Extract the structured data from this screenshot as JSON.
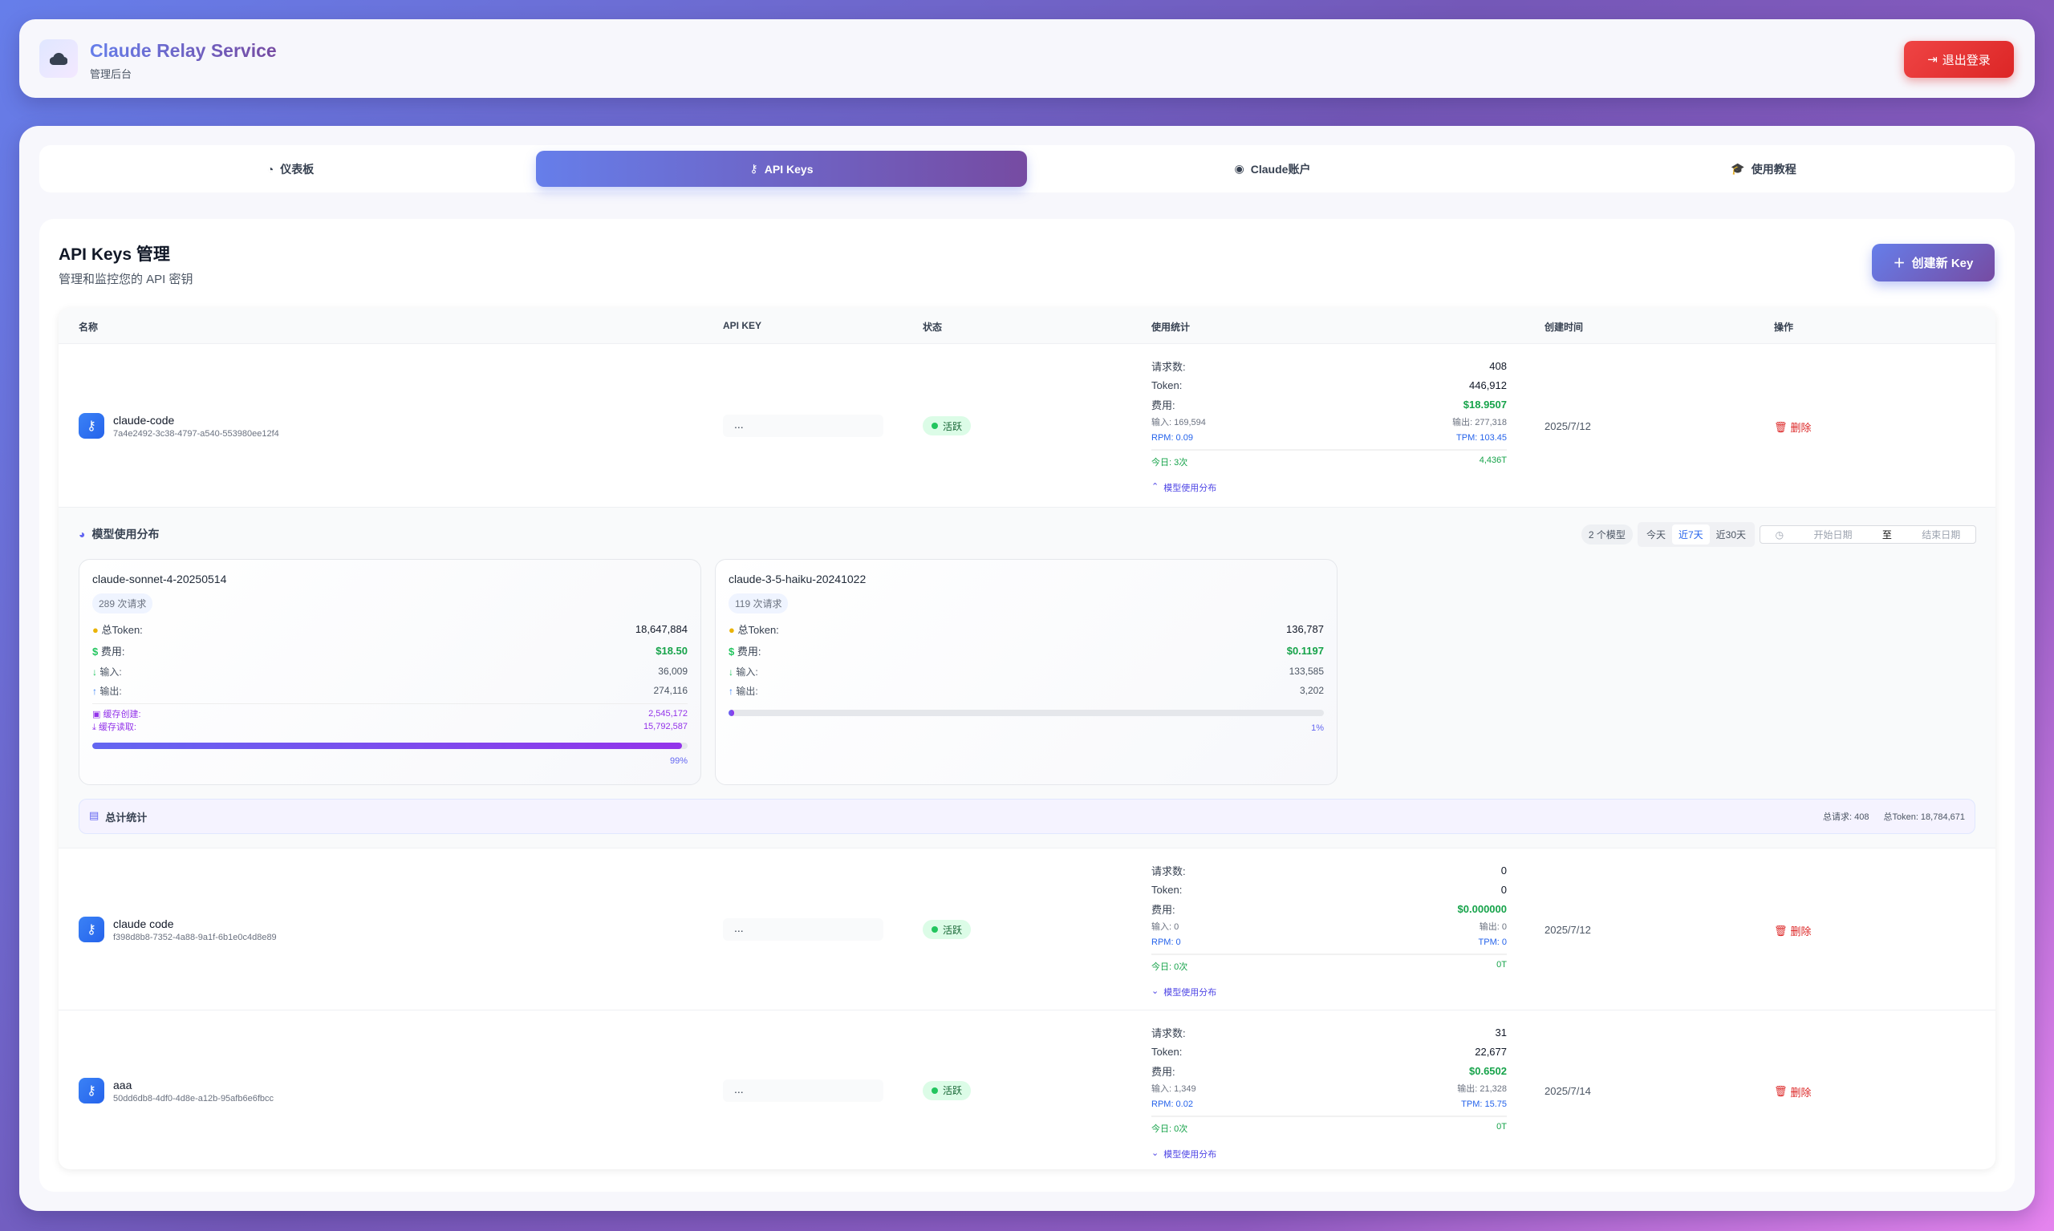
{
  "header": {
    "title": "Claude Relay Service",
    "subtitle": "管理后台",
    "logout_label": "退出登录"
  },
  "tabs": [
    {
      "label": "仪表板",
      "icon": "gauge-icon"
    },
    {
      "label": "API Keys",
      "icon": "key-icon",
      "active": true
    },
    {
      "label": "Claude账户",
      "icon": "user-circle-icon"
    },
    {
      "label": "使用教程",
      "icon": "graduation-cap-icon"
    }
  ],
  "page": {
    "title": "API Keys 管理",
    "subtitle": "管理和监控您的 API 密钥",
    "create_label": "创建新 Key"
  },
  "table": {
    "columns": [
      "名称",
      "API KEY",
      "状态",
      "使用统计",
      "创建时间",
      "操作"
    ],
    "labels": {
      "requests": "请求数:",
      "token": "Token:",
      "cost": "费用:",
      "delete": "删除",
      "toggle": "模型使用分布"
    },
    "rows": [
      {
        "name": "claude-code",
        "id": "7a4e2492-3c38-4797-a540-553980ee12f4",
        "key": "...",
        "status": "活跃",
        "requests": "408",
        "tokens": "446,912",
        "cost": "$18.9507",
        "input": "输入: 169,594",
        "output": "输出: 277,318",
        "rpm": "RPM: 0.09",
        "tpm": "TPM: 103.45",
        "today": "今日: 3次",
        "today_tokens": "4,436T",
        "created": "2025/7/12",
        "expanded": true
      },
      {
        "name": "claude code",
        "id": "f398d8b8-7352-4a88-9a1f-6b1e0c4d8e89",
        "key": "...",
        "status": "活跃",
        "requests": "0",
        "tokens": "0",
        "cost": "$0.000000",
        "input": "输入: 0",
        "output": "输出: 0",
        "rpm": "RPM: 0",
        "tpm": "TPM: 0",
        "today": "今日: 0次",
        "today_tokens": "0T",
        "created": "2025/7/12",
        "expanded": false
      },
      {
        "name": "aaa",
        "id": "50dd6db8-4df0-4d8e-a12b-95afb6e6fbcc",
        "key": "...",
        "status": "活跃",
        "requests": "31",
        "tokens": "22,677",
        "cost": "$0.6502",
        "input": "输入: 1,349",
        "output": "输出: 21,328",
        "rpm": "RPM: 0.02",
        "tpm": "TPM: 15.75",
        "today": "今日: 0次",
        "today_tokens": "0T",
        "created": "2025/7/14",
        "expanded": false
      }
    ]
  },
  "model_dist": {
    "title": "模型使用分布",
    "model_count": "2 个模型",
    "ranges": [
      "今天",
      "近7天",
      "近30天"
    ],
    "active_range": "近7天",
    "start_placeholder": "开始日期",
    "to": "至",
    "end_placeholder": "结束日期",
    "labels": {
      "total_token": "总Token:",
      "cost": "费用:",
      "input": "输入:",
      "output": "输出:",
      "cache_create": "缓存创建:",
      "cache_read": "缓存读取:"
    },
    "models": [
      {
        "name": "claude-sonnet-4-20250514",
        "requests": "289 次请求",
        "total_token": "18,647,884",
        "cost": "$18.50",
        "input": "36,009",
        "output": "274,116",
        "cache_create": "2,545,172",
        "cache_read": "15,792,587",
        "percent": 99,
        "percent_label": "99%"
      },
      {
        "name": "claude-3-5-haiku-20241022",
        "requests": "119 次请求",
        "total_token": "136,787",
        "cost": "$0.1197",
        "input": "133,585",
        "output": "3,202",
        "percent": 1,
        "percent_label": "1%"
      }
    ],
    "total": {
      "title": "总计统计",
      "requests": "总请求: 408",
      "tokens": "总Token: 18,784,671"
    }
  },
  "colors": {
    "accent": "#667eea",
    "accent2": "#764ba2",
    "success": "#16a34a",
    "danger": "#dc2626",
    "info": "#2563eb"
  }
}
